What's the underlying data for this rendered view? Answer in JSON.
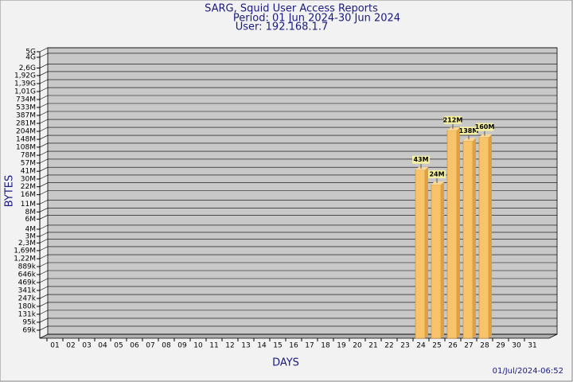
{
  "chart_data": {
    "type": "bar",
    "title": "SARG, Squid User Access Reports",
    "subtitle": "Period: 01 Jun 2024-30 Jun 2024",
    "user": "User: 192.168.1.7",
    "y_label": "BYTES",
    "x_label": "DAYS",
    "footer": "01/Jul/2024-06:52",
    "log_scale": true,
    "grid": true,
    "color": "#f7c46c",
    "categories": [
      "01",
      "02",
      "03",
      "04",
      "05",
      "06",
      "07",
      "08",
      "09",
      "10",
      "11",
      "12",
      "13",
      "14",
      "15",
      "16",
      "17",
      "18",
      "19",
      "20",
      "21",
      "22",
      "23",
      "24",
      "25",
      "26",
      "27",
      "28",
      "29",
      "30",
      "31"
    ],
    "values": [
      null,
      null,
      null,
      null,
      null,
      null,
      null,
      null,
      null,
      null,
      null,
      null,
      null,
      null,
      null,
      null,
      null,
      null,
      null,
      null,
      null,
      null,
      null,
      43000000,
      24000000,
      212000000,
      138000000,
      160000000,
      null,
      null,
      null
    ],
    "value_labels": [
      null,
      null,
      null,
      null,
      null,
      null,
      null,
      null,
      null,
      null,
      null,
      null,
      null,
      null,
      null,
      null,
      null,
      null,
      null,
      null,
      null,
      null,
      null,
      "43M",
      "24M",
      "212M",
      "138M",
      "160M",
      null,
      null,
      null
    ],
    "ylim": [
      50000,
      5000000000
    ],
    "yticks": [
      {
        "value": 69000,
        "label": "69k"
      },
      {
        "value": 95000,
        "label": "95k"
      },
      {
        "value": 131000,
        "label": "131k"
      },
      {
        "value": 180000,
        "label": "180k"
      },
      {
        "value": 247000,
        "label": "247k"
      },
      {
        "value": 341000,
        "label": "341k"
      },
      {
        "value": 469000,
        "label": "469k"
      },
      {
        "value": 646000,
        "label": "646k"
      },
      {
        "value": 889000,
        "label": "889k"
      },
      {
        "value": 1220000,
        "label": "1,22M"
      },
      {
        "value": 1690000,
        "label": "1,69M"
      },
      {
        "value": 2300000,
        "label": "2,3M"
      },
      {
        "value": 3000000,
        "label": "3M"
      },
      {
        "value": 4000000,
        "label": "4M"
      },
      {
        "value": 6000000,
        "label": "6M"
      },
      {
        "value": 8000000,
        "label": "8M"
      },
      {
        "value": 11000000,
        "label": "11M"
      },
      {
        "value": 16000000,
        "label": "16M"
      },
      {
        "value": 22000000,
        "label": "22M"
      },
      {
        "value": 30000000,
        "label": "30M"
      },
      {
        "value": 41000000,
        "label": "41M"
      },
      {
        "value": 57000000,
        "label": "57M"
      },
      {
        "value": 78000000,
        "label": "78M"
      },
      {
        "value": 108000000,
        "label": "108M"
      },
      {
        "value": 148000000,
        "label": "148M"
      },
      {
        "value": 204000000,
        "label": "204M"
      },
      {
        "value": 281000000,
        "label": "281M"
      },
      {
        "value": 387000000,
        "label": "387M"
      },
      {
        "value": 533000000,
        "label": "533M"
      },
      {
        "value": 734000000,
        "label": "734M"
      },
      {
        "value": 1010000000,
        "label": "1,01G"
      },
      {
        "value": 1390000000,
        "label": "1,39G"
      },
      {
        "value": 1920000000,
        "label": "1,92G"
      },
      {
        "value": 2600000000,
        "label": "2,6G"
      },
      {
        "value": 4000000000,
        "label": "4G"
      },
      {
        "value": 5000000000,
        "label": "5G"
      }
    ]
  }
}
